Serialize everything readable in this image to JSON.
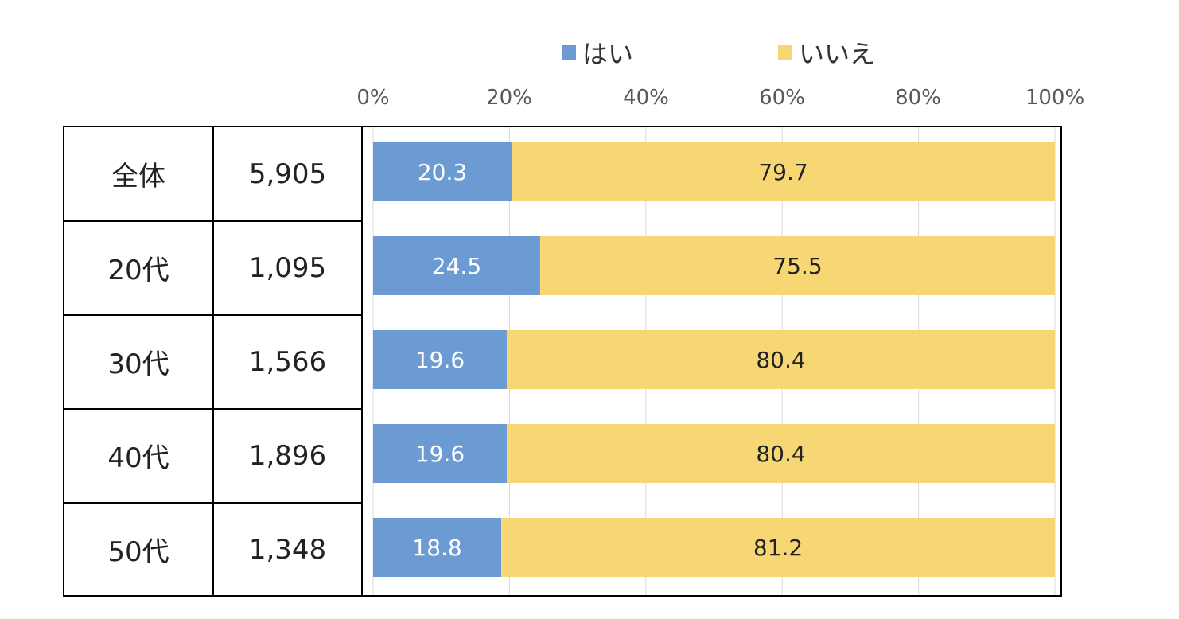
{
  "legend": [
    {
      "label": "はい",
      "color": "#6b9bd2"
    },
    {
      "label": "いいえ",
      "color": "#f7d774"
    }
  ],
  "chart_data": {
    "type": "bar",
    "orientation": "horizontal",
    "stacked": true,
    "categories": [
      "全体",
      "20代",
      "30代",
      "40代",
      "50代"
    ],
    "counts": [
      "5,905",
      "1,095",
      "1,566",
      "1,896",
      "1,348"
    ],
    "series": [
      {
        "name": "はい",
        "color": "#6b9bd2",
        "values": [
          20.3,
          24.5,
          19.6,
          19.6,
          18.8
        ]
      },
      {
        "name": "いいえ",
        "color": "#f7d774",
        "values": [
          79.7,
          75.5,
          80.4,
          80.4,
          81.2
        ]
      }
    ],
    "xlim": [
      0,
      100
    ],
    "xticks": [
      "0%",
      "20%",
      "40%",
      "60%",
      "80%",
      "100%"
    ],
    "grid": true,
    "legend_position": "top"
  }
}
